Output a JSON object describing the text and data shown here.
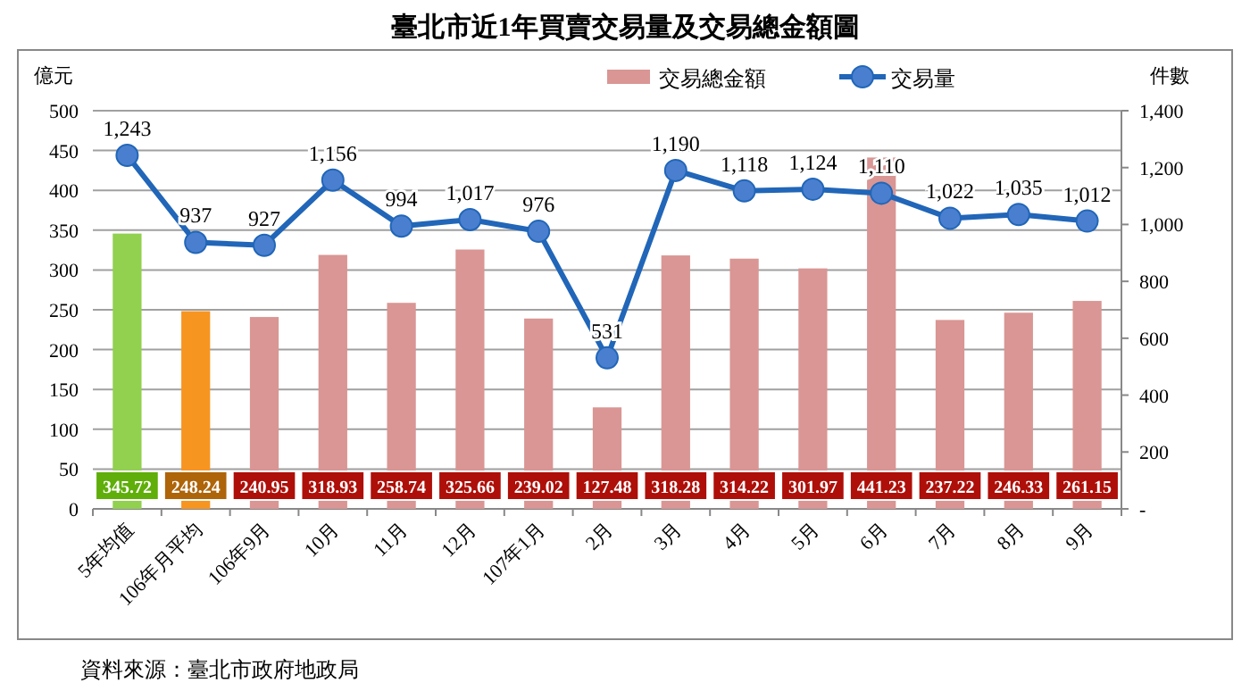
{
  "chart_data": {
    "type": "bar",
    "title": "臺北市近1年買賣交易量及交易總金額圖",
    "categories": [
      "5年均值",
      "106年月平均",
      "106年9月",
      "10月",
      "11月",
      "12月",
      "107年1月",
      "2月",
      "3月",
      "4月",
      "5月",
      "6月",
      "7月",
      "8月",
      "9月"
    ],
    "ylabel": "億元",
    "y2label": "件數",
    "series": [
      {
        "name": "交易總金額",
        "color": "#d99694",
        "colors": [
          "#92d050",
          "#f79521",
          "#d99694",
          "#d99694",
          "#d99694",
          "#d99694",
          "#d99694",
          "#d99694",
          "#d99694",
          "#d99694",
          "#d99694",
          "#d99694",
          "#d99694",
          "#d99694",
          "#d99694"
        ],
        "values": [
          345.72,
          248.24,
          240.95,
          318.93,
          258.74,
          325.66,
          239.02,
          127.48,
          318.28,
          314.22,
          301.97,
          441.23,
          237.22,
          246.33,
          261.15
        ],
        "value_labels": [
          "345.72",
          "248.24",
          "240.95",
          "318.93",
          "258.74",
          "325.66",
          "239.02",
          "127.48",
          "318.28",
          "314.22",
          "301.97",
          "441.23",
          "237.22",
          "246.33",
          "261.15"
        ]
      },
      {
        "name": "交易量",
        "type": "line",
        "axis": "y2",
        "color": "#2166b8",
        "values": [
          1243,
          937,
          927,
          1156,
          994,
          1017,
          976,
          531,
          1190,
          1118,
          1124,
          1110,
          1022,
          1035,
          1012
        ],
        "value_labels": [
          "1,243",
          "937",
          "927",
          "1,156",
          "994",
          "1,017",
          "976",
          "531",
          "1,190",
          "1,118",
          "1,124",
          "1,110",
          "1,022",
          "1,035",
          "1,012"
        ]
      }
    ],
    "ylim": [
      0,
      500
    ],
    "yticks": [
      0,
      50,
      100,
      150,
      200,
      250,
      300,
      350,
      400,
      450,
      500
    ],
    "y2lim": [
      0,
      1400
    ],
    "y2ticks": [
      {
        "value": 0,
        "label": "-"
      },
      200,
      400,
      600,
      800,
      {
        "value": 1000,
        "label": "1,000"
      },
      {
        "value": 1200,
        "label": "1,200"
      },
      {
        "value": 1400,
        "label": "1,400"
      }
    ],
    "grid": "y",
    "legend": "top right",
    "marker": "circle",
    "line_style": "solid",
    "annotations": [
      "資料來源：臺北市政府地政局"
    ]
  }
}
